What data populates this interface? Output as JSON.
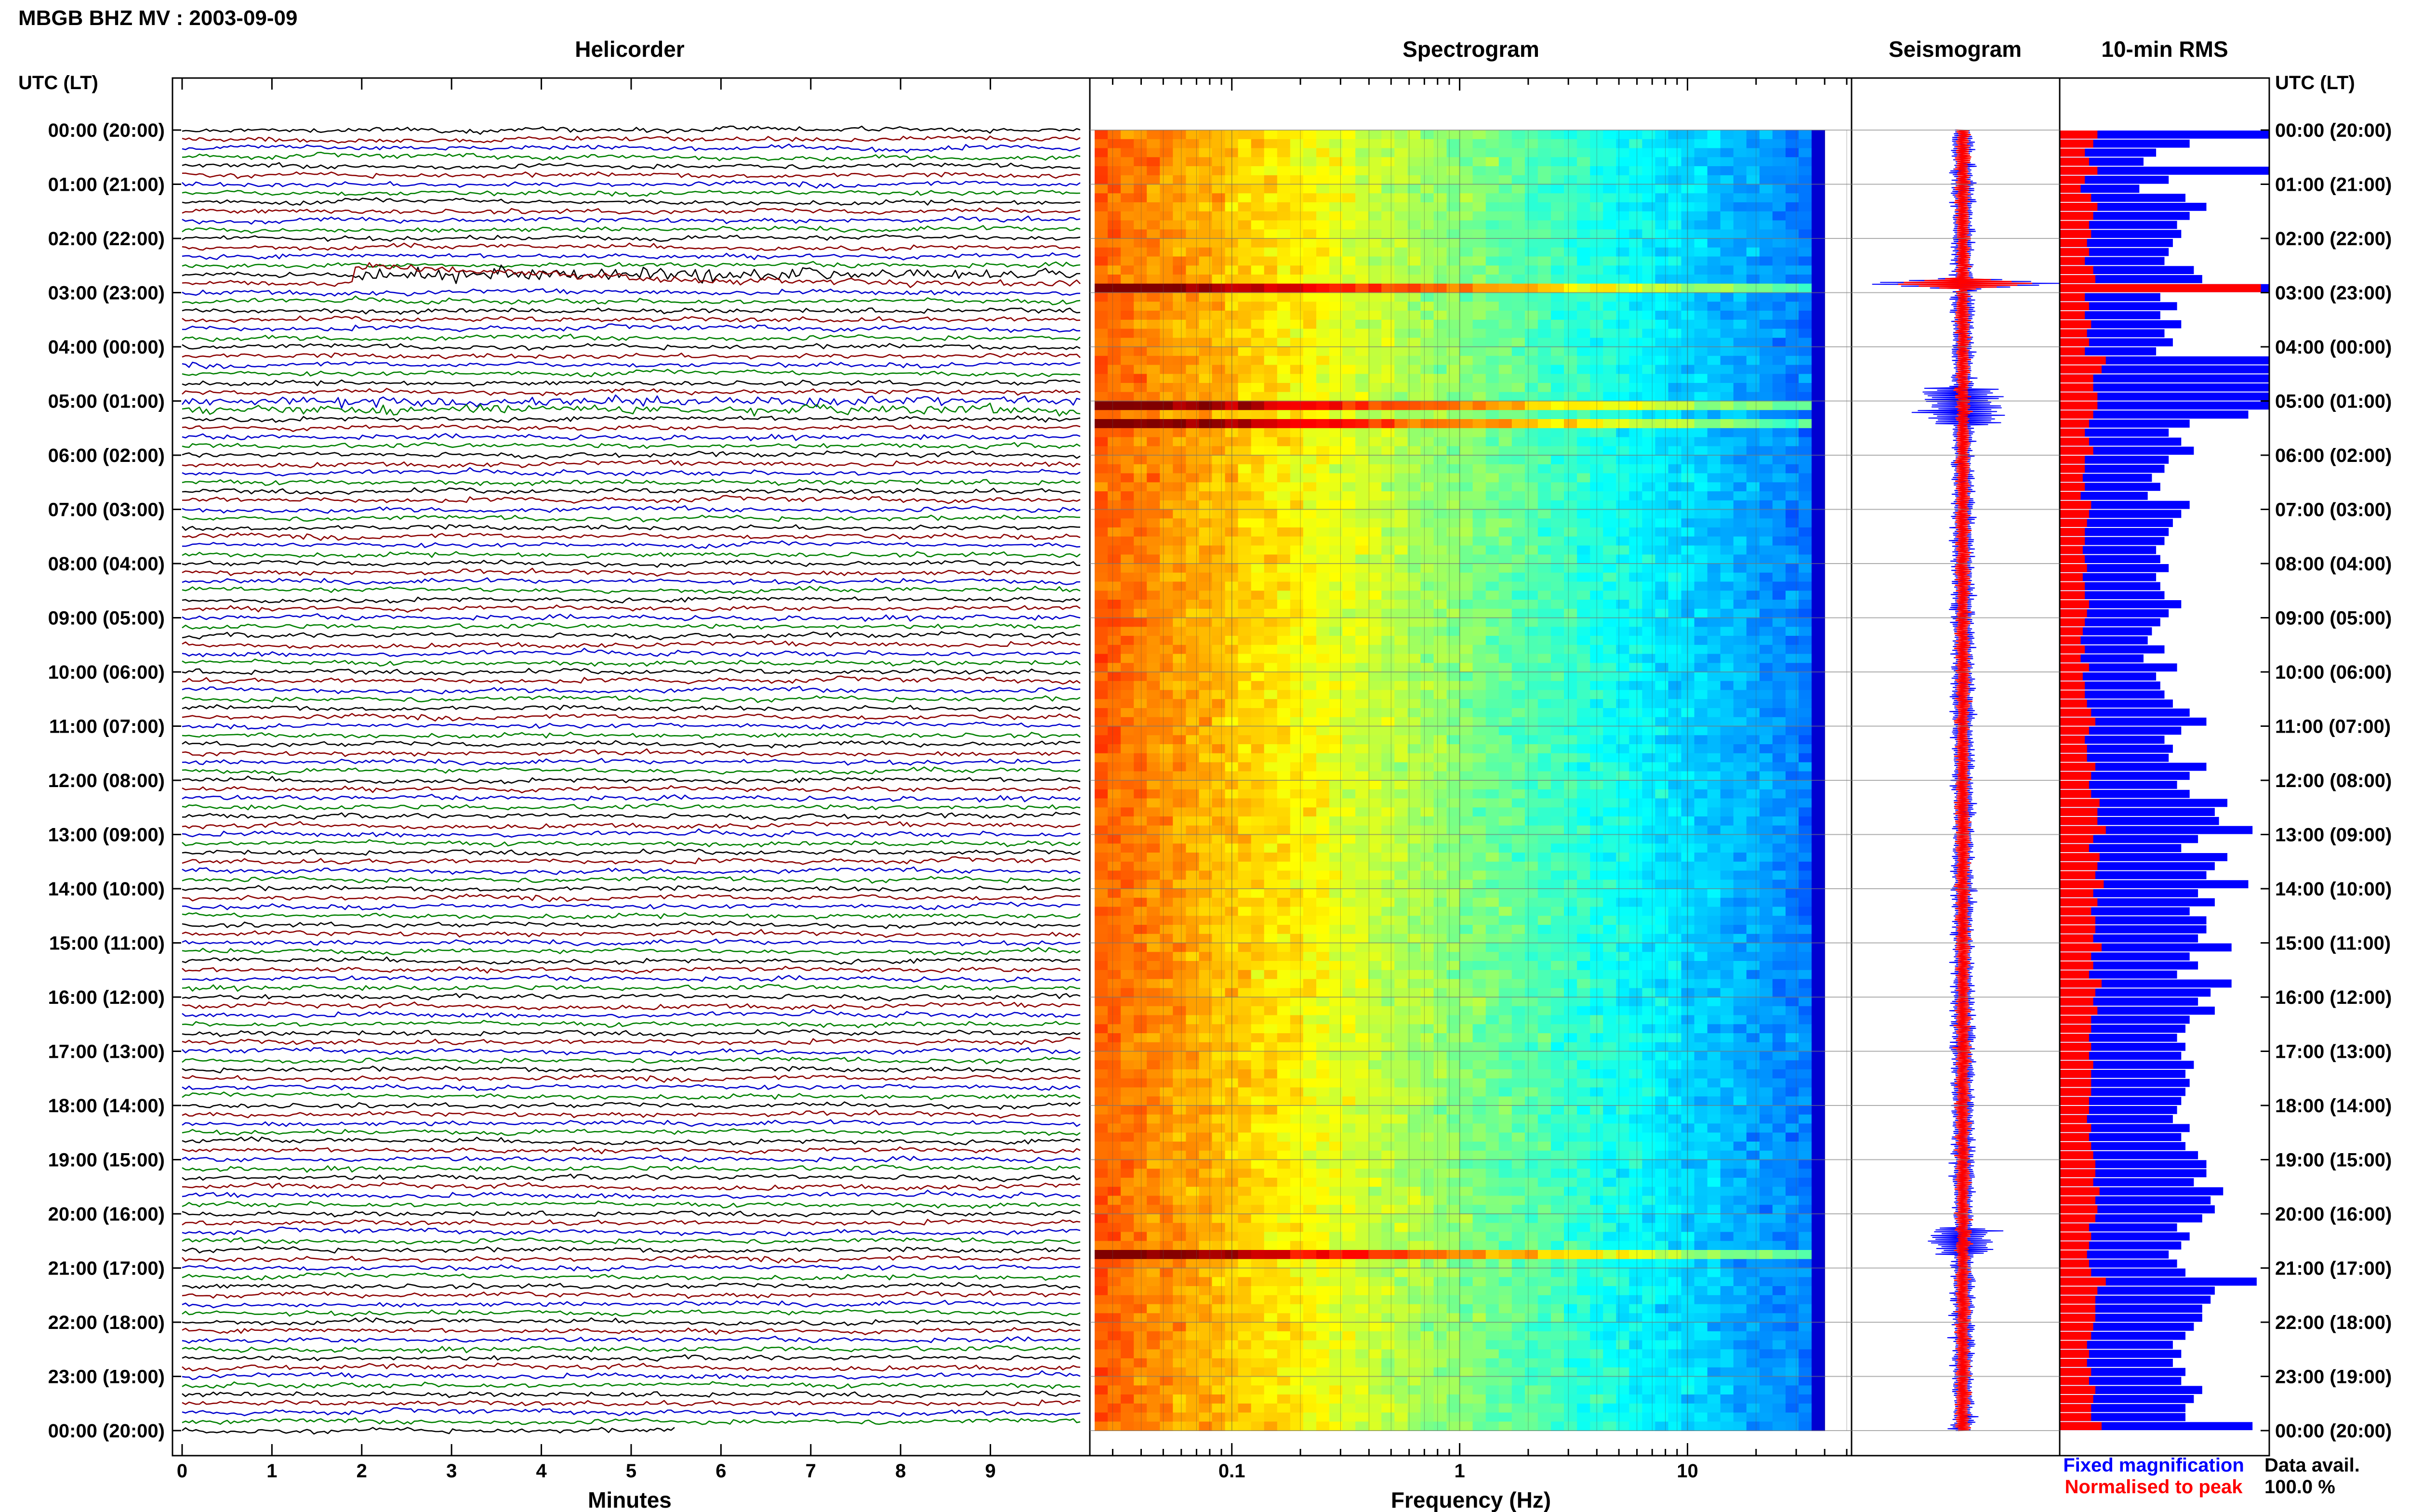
{
  "page_title": "MBGB BHZ MV : 2003-09-09",
  "time_axis_label": "UTC (LT)",
  "time_labels": [
    "00:00 (20:00)",
    "01:00 (21:00)",
    "02:00 (22:00)",
    "03:00 (23:00)",
    "04:00 (00:00)",
    "05:00 (01:00)",
    "06:00 (02:00)",
    "07:00 (03:00)",
    "08:00 (04:00)",
    "09:00 (05:00)",
    "10:00 (06:00)",
    "11:00 (07:00)",
    "12:00 (08:00)",
    "13:00 (09:00)",
    "14:00 (10:00)",
    "15:00 (11:00)",
    "16:00 (12:00)",
    "17:00 (13:00)",
    "18:00 (14:00)",
    "19:00 (15:00)",
    "20:00 (16:00)",
    "21:00 (17:00)",
    "22:00 (18:00)",
    "23:00 (19:00)",
    "00:00 (20:00)"
  ],
  "colors": {
    "trace_cycle": [
      "#000000",
      "#8b0000",
      "#0000cd",
      "#008000"
    ],
    "fixed_magnification": "#0000ff",
    "normalised_to_peak": "#ff0000",
    "panel_border": "#000000"
  },
  "legend": {
    "fixed_magnification": "Fixed magnification",
    "normalised_to_peak": "Normalised to peak"
  },
  "data_availability": {
    "label": "Data avail.",
    "value": "100.0 %"
  },
  "chart_data": [
    {
      "type": "line",
      "title": "Helicorder",
      "xlabel": "Minutes",
      "x_ticks": [
        "0",
        "1",
        "2",
        "3",
        "4",
        "5",
        "6",
        "7",
        "8",
        "9"
      ],
      "xlim": [
        0,
        10
      ],
      "rows_per_hour": 6,
      "hours": 24,
      "notes": "Continuous 10-minute seismogram lines; large transient near 02:50 UTC, elevated activity near 05:00–05:20 UTC"
    },
    {
      "type": "heatmap",
      "title": "Spectrogram",
      "xlabel": "Frequency (Hz)",
      "x_scale": "log",
      "x_ticks": [
        "0.1",
        "1",
        "10"
      ],
      "xlim": [
        0.025,
        50
      ],
      "colormap": "jet",
      "bright_rows_utc": [
        "02:50",
        "05:00",
        "05:20",
        "20:40"
      ]
    },
    {
      "type": "line",
      "title": "Seismogram",
      "series": [
        {
          "name": "Fixed magnification",
          "color": "#0000ff"
        },
        {
          "name": "Normalised to peak",
          "color": "#ff0000"
        }
      ],
      "spike_utc": "02:50"
    },
    {
      "type": "bar",
      "title": "10-min RMS",
      "orientation": "horizontal",
      "interval_minutes": 10,
      "series": [
        {
          "name": "Fixed magnification",
          "color": "#0000ff",
          "values": [
            1.0,
            0.62,
            0.46,
            0.4,
            1.0,
            0.52,
            0.38,
            0.6,
            0.7,
            0.62,
            0.56,
            0.58,
            0.54,
            0.52,
            0.5,
            0.64,
            0.68,
            1.0,
            0.48,
            0.56,
            0.48,
            0.58,
            0.5,
            0.54,
            0.46,
            1.0,
            1.0,
            1.0,
            1.0,
            1.0,
            1.0,
            0.9,
            0.62,
            0.52,
            0.58,
            0.64,
            0.52,
            0.5,
            0.44,
            0.48,
            0.42,
            0.62,
            0.58,
            0.54,
            0.52,
            0.5,
            0.46,
            0.48,
            0.52,
            0.46,
            0.48,
            0.5,
            0.58,
            0.52,
            0.48,
            0.44,
            0.42,
            0.5,
            0.4,
            0.56,
            0.46,
            0.48,
            0.5,
            0.54,
            0.62,
            0.7,
            0.58,
            0.5,
            0.54,
            0.52,
            0.7,
            0.62,
            0.56,
            0.62,
            0.8,
            0.74,
            0.76,
            0.92,
            0.66,
            0.58,
            0.8,
            0.74,
            0.7,
            0.9,
            0.66,
            0.74,
            0.62,
            0.7,
            0.7,
            0.66,
            0.82,
            0.62,
            0.66,
            0.56,
            0.82,
            0.72,
            0.66,
            0.74,
            0.62,
            0.6,
            0.56,
            0.6,
            0.58,
            0.64,
            0.6,
            0.62,
            0.6,
            0.58,
            0.56,
            0.54,
            0.62,
            0.58,
            0.6,
            0.66,
            0.7,
            0.7,
            0.64,
            0.78,
            0.72,
            0.74,
            0.68,
            0.56,
            0.62,
            0.58,
            0.52,
            0.56,
            0.6,
            0.94,
            0.74,
            0.72,
            0.68,
            0.68,
            0.64,
            0.6,
            0.54,
            0.58,
            0.54,
            0.6,
            0.58,
            0.68,
            0.64,
            0.6,
            0.6,
            0.92
          ]
        },
        {
          "name": "Normalised to peak",
          "color": "#ff0000",
          "values": [
            0.18,
            0.16,
            0.12,
            0.14,
            0.18,
            0.12,
            0.1,
            0.15,
            0.18,
            0.16,
            0.14,
            0.15,
            0.13,
            0.14,
            0.12,
            0.16,
            0.17,
            0.96,
            0.12,
            0.14,
            0.12,
            0.15,
            0.13,
            0.14,
            0.12,
            0.22,
            0.2,
            0.16,
            0.16,
            0.18,
            0.18,
            0.16,
            0.14,
            0.12,
            0.14,
            0.16,
            0.12,
            0.12,
            0.11,
            0.12,
            0.1,
            0.15,
            0.14,
            0.13,
            0.12,
            0.12,
            0.11,
            0.12,
            0.13,
            0.11,
            0.12,
            0.12,
            0.14,
            0.13,
            0.12,
            0.11,
            0.1,
            0.12,
            0.1,
            0.14,
            0.11,
            0.12,
            0.12,
            0.13,
            0.15,
            0.17,
            0.14,
            0.12,
            0.13,
            0.13,
            0.17,
            0.15,
            0.14,
            0.15,
            0.19,
            0.18,
            0.18,
            0.22,
            0.16,
            0.14,
            0.19,
            0.18,
            0.17,
            0.21,
            0.16,
            0.18,
            0.15,
            0.17,
            0.17,
            0.16,
            0.2,
            0.15,
            0.16,
            0.14,
            0.2,
            0.17,
            0.16,
            0.18,
            0.15,
            0.15,
            0.14,
            0.15,
            0.14,
            0.16,
            0.15,
            0.15,
            0.15,
            0.14,
            0.14,
            0.13,
            0.15,
            0.14,
            0.15,
            0.16,
            0.17,
            0.17,
            0.16,
            0.19,
            0.17,
            0.18,
            0.17,
            0.14,
            0.15,
            0.14,
            0.13,
            0.14,
            0.15,
            0.22,
            0.18,
            0.17,
            0.17,
            0.17,
            0.16,
            0.15,
            0.13,
            0.14,
            0.13,
            0.15,
            0.14,
            0.17,
            0.16,
            0.15,
            0.15,
            0.2
          ]
        }
      ]
    }
  ]
}
